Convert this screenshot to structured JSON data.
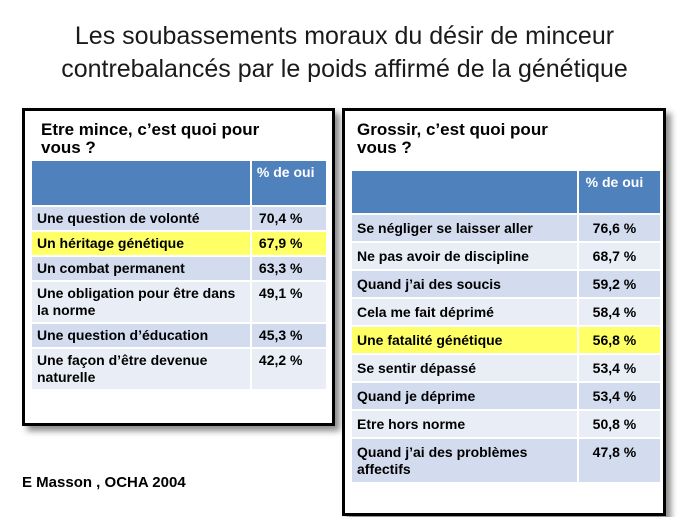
{
  "title_lines": [
    "Les soubassements moraux du désir de minceur",
    "contrebalancés par le poids  affirmé de la génétique"
  ],
  "left": {
    "title_lines": [
      "Etre mince, c’est quoi pour",
      "vous ?"
    ],
    "header": {
      "col1": "",
      "col2": "% de oui"
    },
    "rows": [
      {
        "label": "Une question de volonté",
        "value": "70,4 %",
        "highlight": false
      },
      {
        "label": "Un héritage génétique",
        "value": "67,9 %",
        "highlight": true
      },
      {
        "label": "Un combat permanent",
        "value": "63,3 %",
        "highlight": false
      },
      {
        "label": "Une obligation pour être dans la norme",
        "value": "49,1 %",
        "highlight": false
      },
      {
        "label": "Une question d’éducation",
        "value": "45,3 %",
        "highlight": false
      },
      {
        "label": "Une façon d’être devenue naturelle",
        "value": "42,2 %",
        "highlight": false
      }
    ]
  },
  "right": {
    "title_lines": [
      "Grossir, c’est quoi pour",
      "vous ?"
    ],
    "header": {
      "col1": "",
      "col2": "% de oui"
    },
    "rows": [
      {
        "label": "Se négliger se laisser aller",
        "value": "76,6 %",
        "highlight": false
      },
      {
        "label": "Ne pas avoir de discipline",
        "value": "68,7 %",
        "highlight": false
      },
      {
        "label": "Quand j’ai des soucis",
        "value": "59,2 %",
        "highlight": false
      },
      {
        "label": "Cela me fait déprimé",
        "value": "58,4 %",
        "highlight": false
      },
      {
        "label": "Une fatalité génétique",
        "value": "56,8 %",
        "highlight": true
      },
      {
        "label": "Se sentir dépassé",
        "value": "53,4 %",
        "highlight": false
      },
      {
        "label": "Quand je déprime",
        "value": "53,4 %",
        "highlight": false
      },
      {
        "label": "Etre hors norme",
        "value": "50,8 %",
        "highlight": false
      },
      {
        "label": "Quand j’ai des problèmes affectifs",
        "value": "47,8 %",
        "highlight": false
      }
    ]
  },
  "source": "E Masson , OCHA 2004",
  "colors": {
    "header": "#4f81bd",
    "row_dark": "#d3dbee",
    "row_light": "#e9edf6",
    "highlight": "#ffff66"
  }
}
